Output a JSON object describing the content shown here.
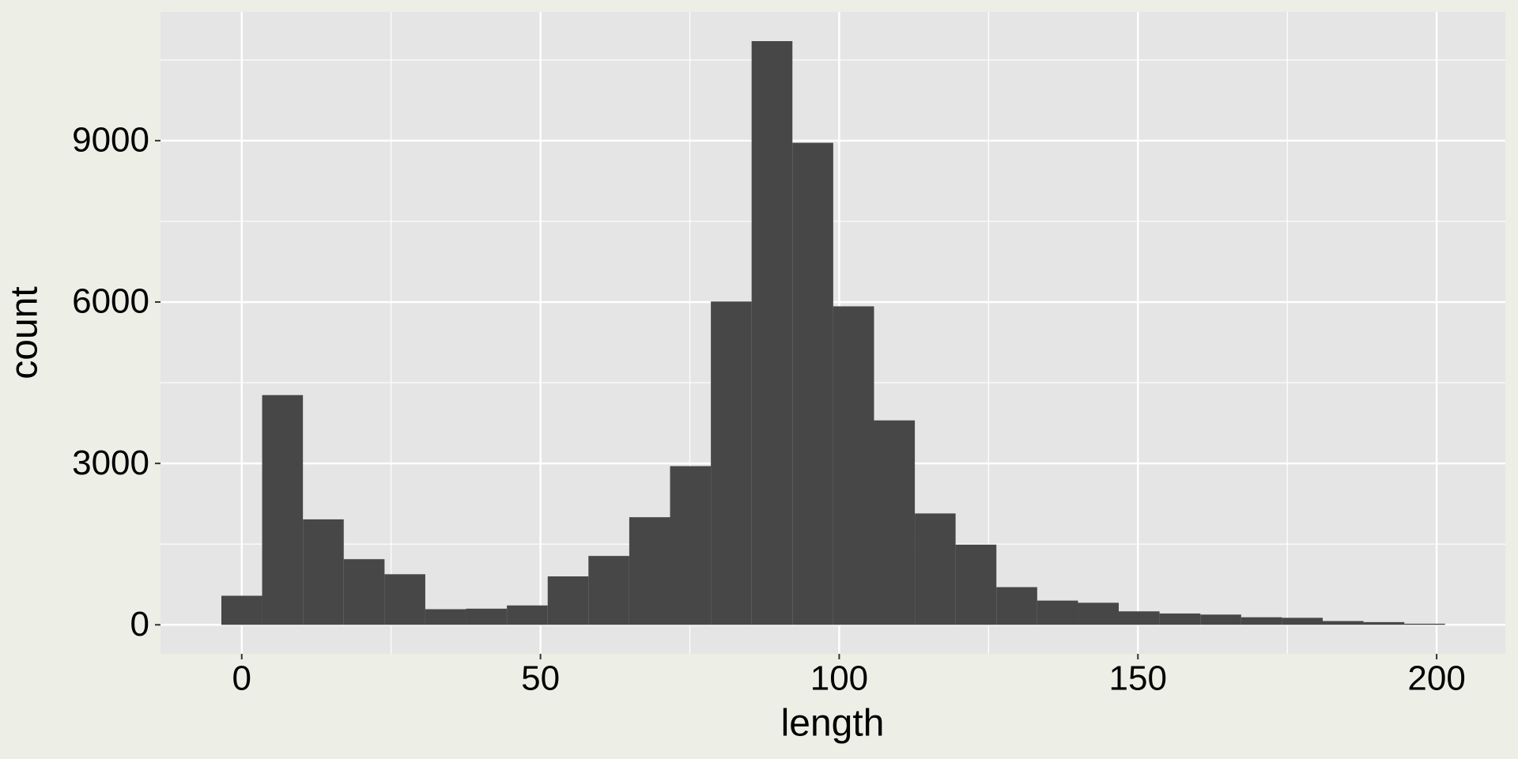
{
  "chart_data": {
    "type": "histogram",
    "x_label": "length",
    "y_label": "count",
    "bins": [
      -3.41,
      3.41,
      10.24,
      17.07,
      23.9,
      30.72,
      37.55,
      44.38,
      51.21,
      58.03,
      64.86,
      71.69,
      78.52,
      85.34,
      92.17,
      99.0,
      105.83,
      112.66,
      119.48,
      126.31,
      133.14,
      139.97,
      146.79,
      153.62,
      160.45,
      167.28,
      174.1,
      180.93,
      187.76,
      194.59,
      201.41
    ],
    "values": [
      540,
      4270,
      1960,
      1220,
      940,
      290,
      300,
      360,
      900,
      1280,
      2000,
      2950,
      6010,
      10850,
      8960,
      5920,
      3800,
      2070,
      1490,
      700,
      450,
      410,
      250,
      210,
      190,
      140,
      130,
      70,
      50,
      20
    ],
    "color": "#474747",
    "xlim": [
      -13.6,
      211.5
    ],
    "xticks": [
      0,
      50,
      100,
      150,
      200
    ],
    "ylim": [
      -540,
      11394
    ],
    "yticks": [
      0,
      3000,
      6000,
      9000
    ],
    "grid": true
  }
}
